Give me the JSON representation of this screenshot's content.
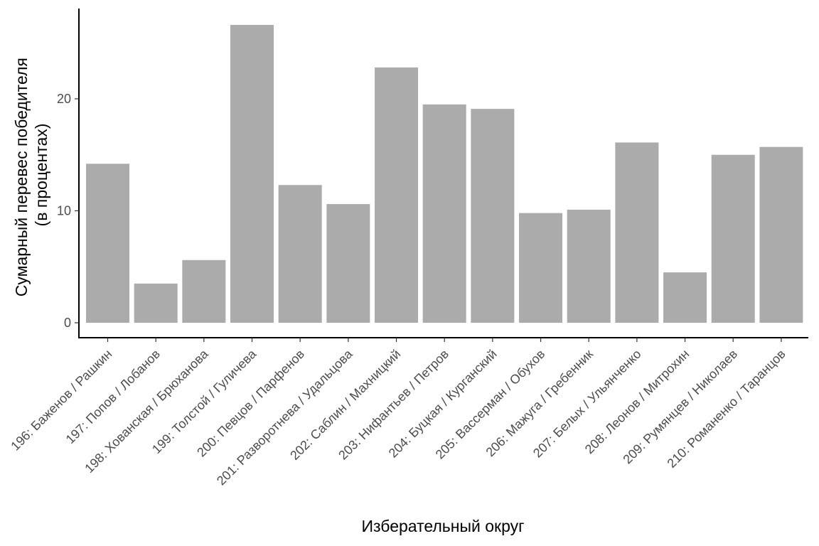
{
  "chart_data": {
    "type": "bar",
    "xlabel": "Изберательный округ",
    "ylabel_lines": [
      "Сумарный перевес победителя",
      "(в процентах)"
    ],
    "ylim": [
      0,
      27.5
    ],
    "yticks": [
      0,
      10,
      20
    ],
    "categories": [
      "196: Баженов / Рашкин",
      "197: Попов / Лобанов",
      "198: Хованская / Брюханова",
      "199: Толстой / Гуличева",
      "200: Певцов / Парфенов",
      "201: Разворотнева / Удальцова",
      "202: Саблин / Махницкий",
      "203: Нифантьев / Петров",
      "204: Буцкая / Курганский",
      "205: Вассерман / Обухов",
      "206: Мажуга / Гребенник",
      "207: Белых / Ульянченко",
      "208: Леонов / Митрохин",
      "209: Румянцев / Николаев",
      "210: Романенко / Таранцов"
    ],
    "values": [
      14.2,
      3.5,
      5.6,
      26.6,
      12.3,
      10.6,
      22.8,
      19.5,
      19.1,
      9.8,
      10.1,
      16.1,
      4.5,
      15.0,
      15.7
    ],
    "bar_color": "#ababab",
    "grid": false,
    "legend": "none"
  }
}
